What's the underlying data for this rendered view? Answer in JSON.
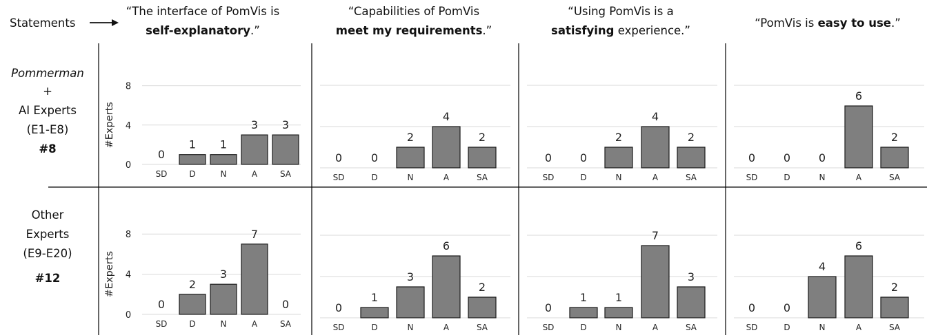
{
  "header": {
    "statements_label": "Statements",
    "arrow_icon": "right-arrow-icon"
  },
  "statements": [
    {
      "line1": "“The interface of PomVis is",
      "line2_bold": "self-explanatory",
      "line2_rest": ".”"
    },
    {
      "line1": "“Capabilities of PomVis",
      "line2_bold": "meet my requirements",
      "line2_rest": ".”"
    },
    {
      "line1": "“Using PomVis is a",
      "line2_bold": "satisfying",
      "line2_rest": " experience.”"
    },
    {
      "line1_pre": "“PomVis is ",
      "line1_bold": "easy to use",
      "line1_post": ".”"
    }
  ],
  "rows": [
    {
      "label_lines": [
        "Pommerman",
        "+",
        "AI Experts",
        "(E1-E8)"
      ],
      "count": "#8"
    },
    {
      "label_lines": [
        "Other",
        "Experts",
        "(E9-E20)"
      ],
      "count": "#12"
    }
  ],
  "chart_data": {
    "type": "bar",
    "categories": [
      "SD",
      "D",
      "N",
      "A",
      "SA"
    ],
    "ylabel": "#Experts",
    "yticks": [
      0,
      4,
      8
    ],
    "ylim": [
      0,
      8
    ],
    "grid": true,
    "panels": [
      {
        "row": 0,
        "col": 0,
        "values": [
          0,
          1,
          1,
          3,
          3
        ]
      },
      {
        "row": 0,
        "col": 1,
        "values": [
          0,
          0,
          2,
          4,
          2
        ]
      },
      {
        "row": 0,
        "col": 2,
        "values": [
          0,
          0,
          2,
          4,
          2
        ]
      },
      {
        "row": 0,
        "col": 3,
        "values": [
          0,
          0,
          0,
          6,
          2
        ]
      },
      {
        "row": 1,
        "col": 0,
        "values": [
          0,
          2,
          3,
          7,
          0
        ]
      },
      {
        "row": 1,
        "col": 1,
        "values": [
          0,
          1,
          3,
          6,
          2
        ]
      },
      {
        "row": 1,
        "col": 2,
        "values": [
          0,
          1,
          1,
          7,
          3
        ]
      },
      {
        "row": 1,
        "col": 3,
        "values": [
          0,
          0,
          4,
          6,
          2
        ]
      }
    ]
  },
  "colors": {
    "bar_fill": "#7f7f7f",
    "bar_stroke": "#1a1a1a",
    "grid": "#d9d9d9",
    "divider": "#000000"
  }
}
